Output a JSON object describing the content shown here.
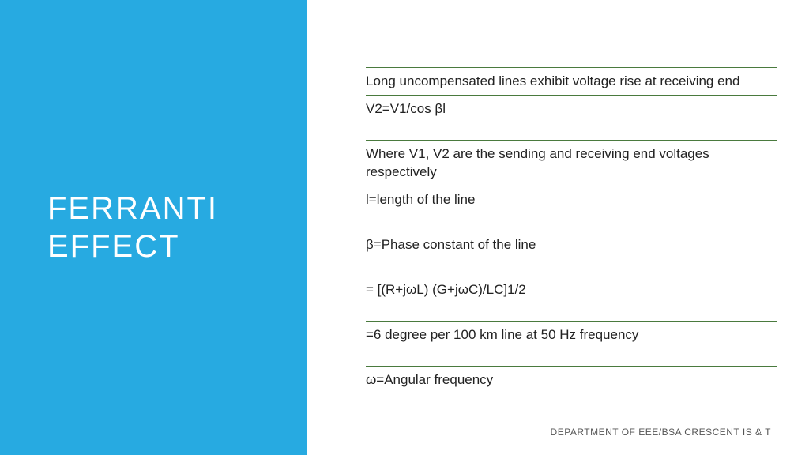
{
  "colors": {
    "panel_bg": "#27aae1",
    "rule": "#4a7a3e",
    "right_bg": "#ffffff",
    "title_text": "#ffffff",
    "body_text": "#222222",
    "footer_text": "#555555"
  },
  "title": "FERRANTI EFFECT",
  "items": [
    {
      "text": "Long uncompensated lines exhibit voltage rise at receiving end",
      "gap": false
    },
    {
      "text": "V2=V1/cos βl",
      "gap": false
    },
    {
      "text": "Where V1, V2 are the sending and receiving end voltages respectively",
      "gap": true
    },
    {
      "text": "l=length of the line",
      "gap": false
    },
    {
      "text": "β=Phase constant of the line",
      "gap": true
    },
    {
      "text": "= [(R+jωL) (G+jωC)/LC]1/2",
      "gap": true
    },
    {
      "text": "=6 degree per 100 km line at 50 Hz frequency",
      "gap": true
    },
    {
      "text": "ω=Angular frequency",
      "gap": true
    }
  ],
  "footer": "DEPARTMENT OF EEE/BSA CRESCENT IS & T"
}
